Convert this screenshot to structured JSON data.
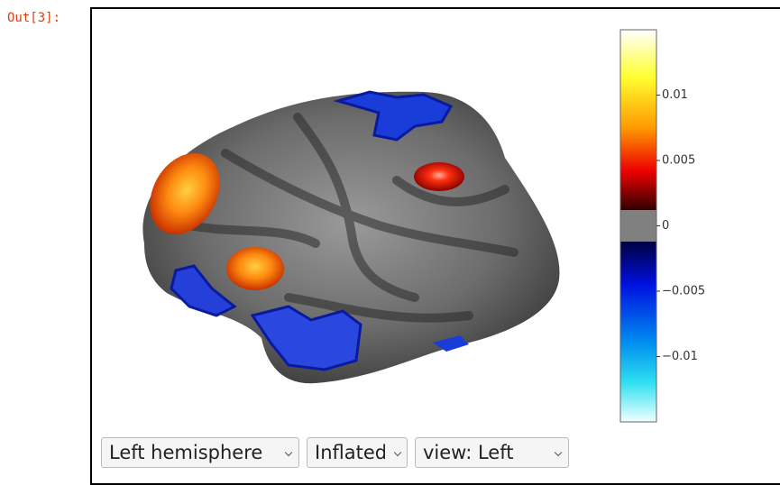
{
  "prompt": "Out[3]:",
  "colorbar": {
    "lim": [
      -0.015,
      0.015
    ],
    "ticks": [
      0.01,
      0.005,
      0,
      {
        "value": -0.005,
        "label": "−0.005"
      },
      {
        "value": -0.01,
        "label": "−0.01"
      }
    ]
  },
  "controls": {
    "hemisphere": "Left hemisphere",
    "surface": "Inflated",
    "view": "view: Left"
  }
}
